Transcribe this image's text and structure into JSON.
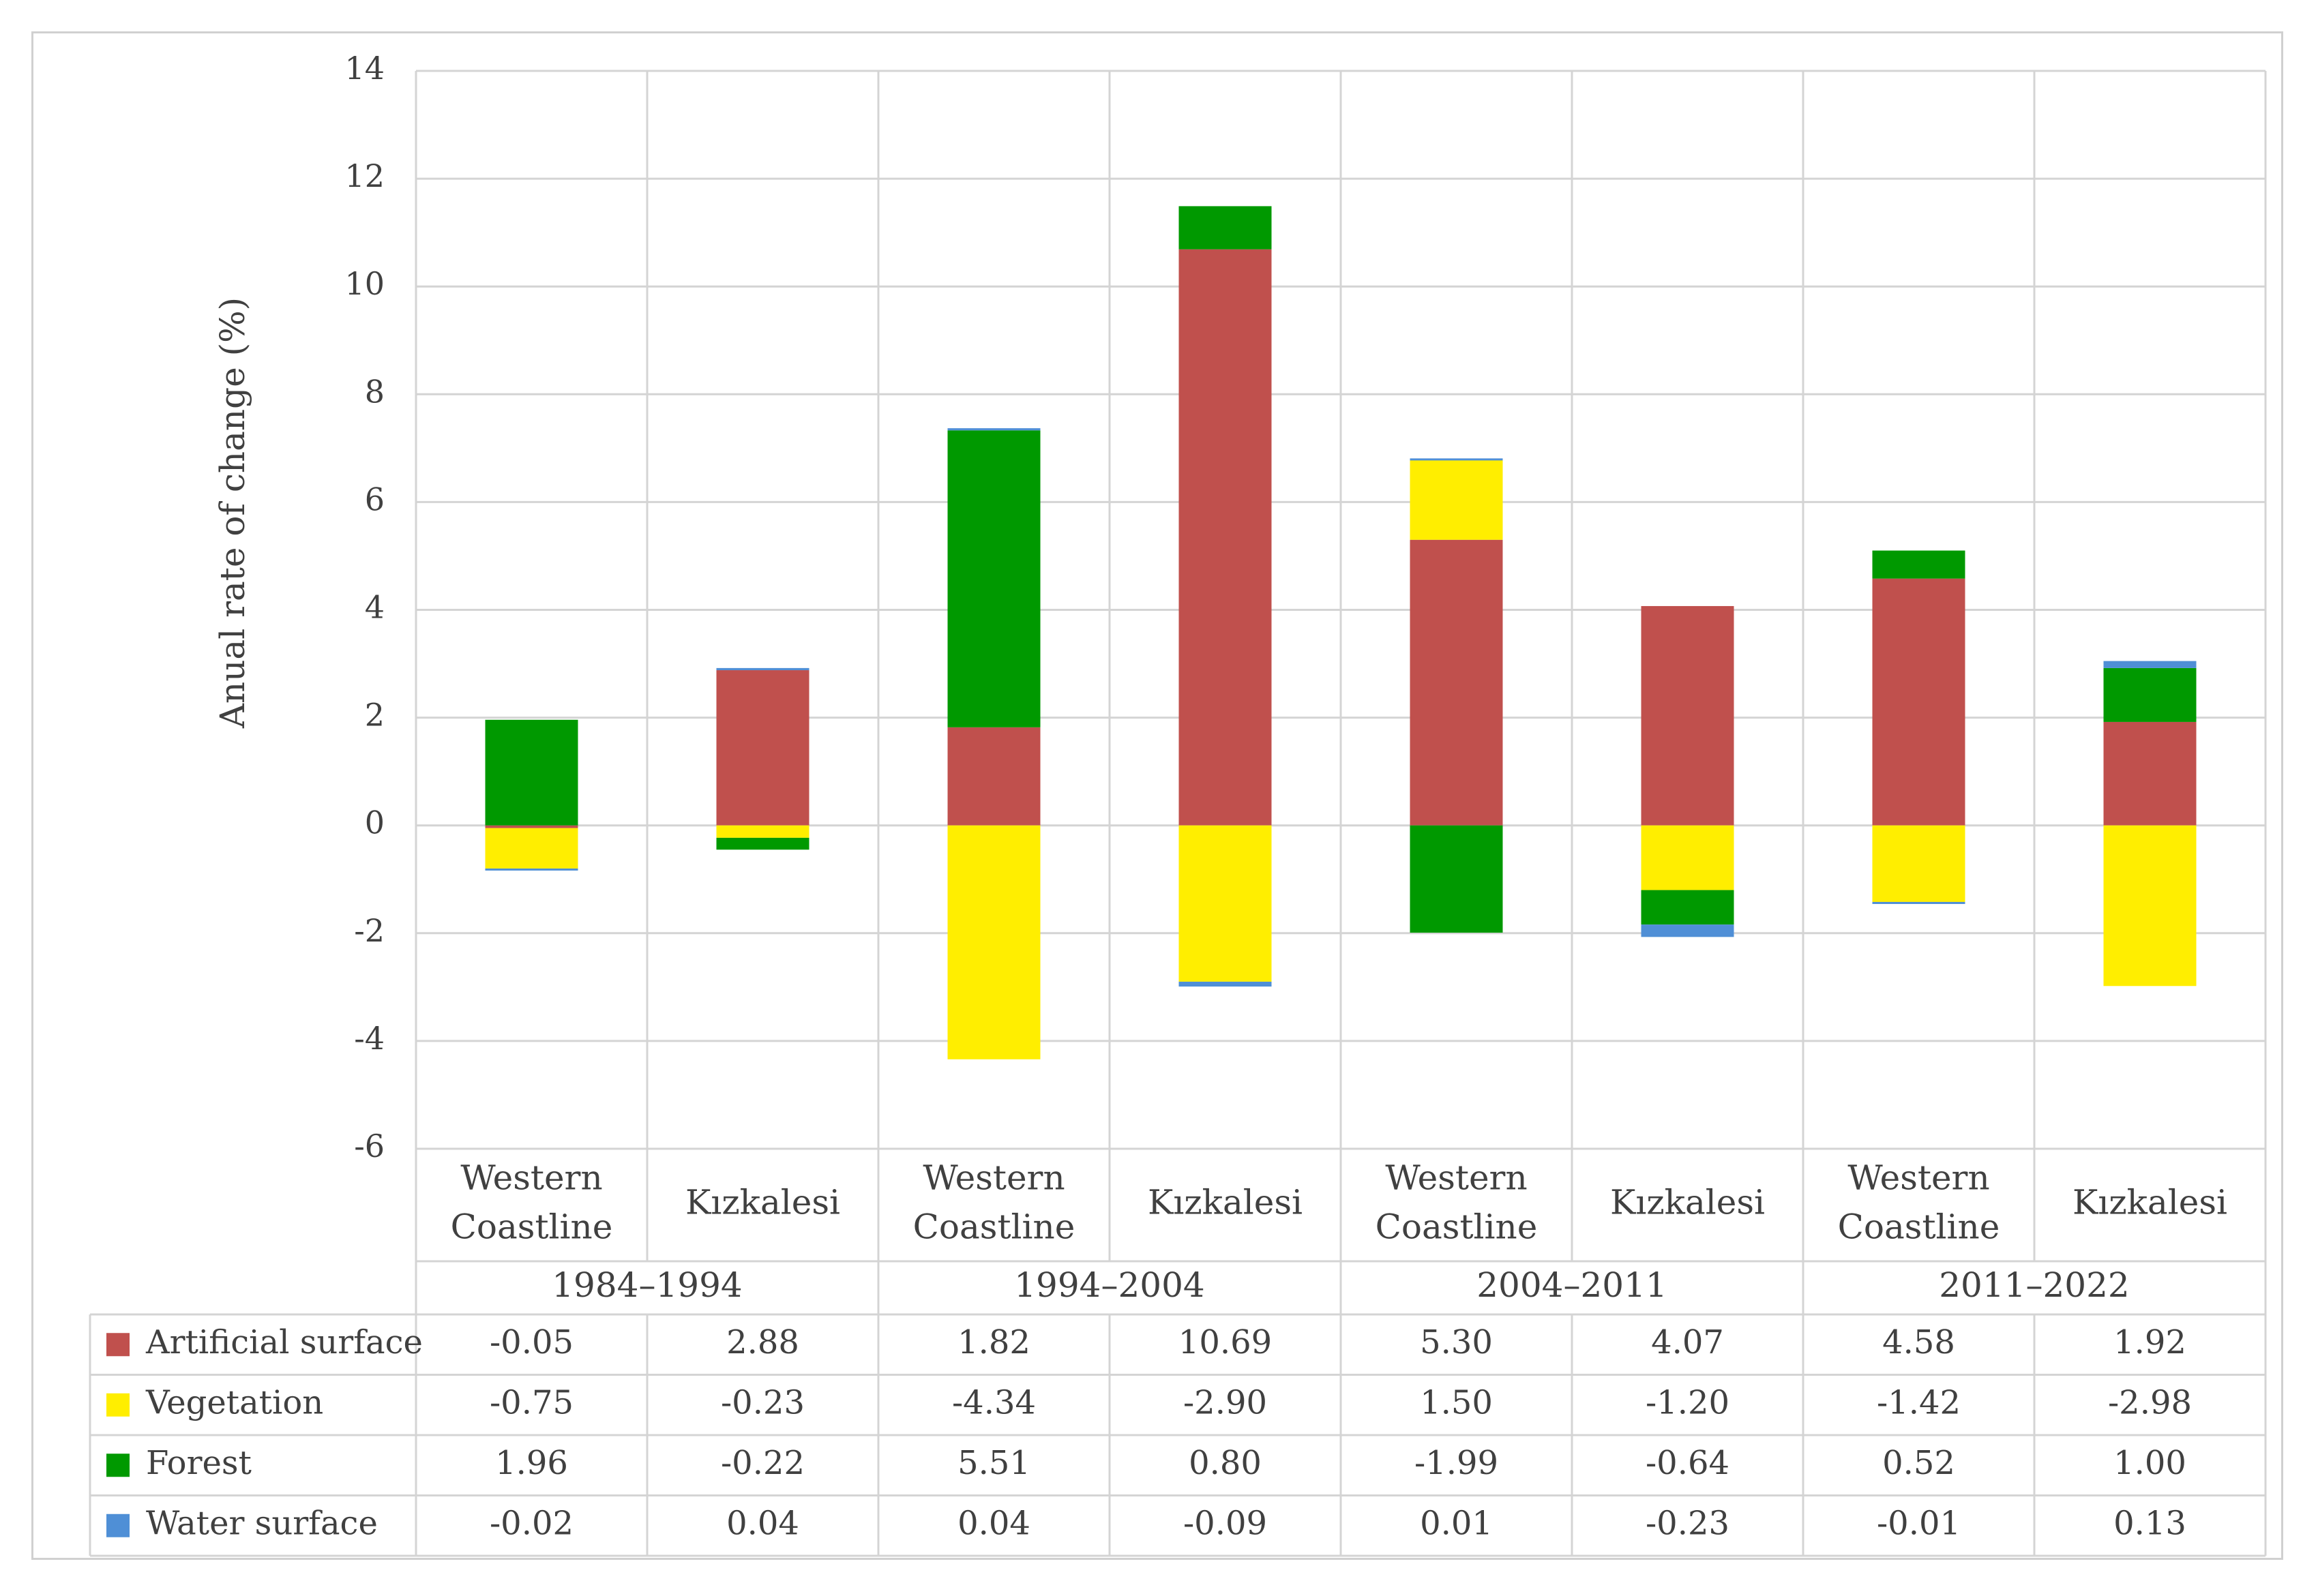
{
  "chart_data": {
    "type": "bar",
    "stacked": true,
    "title": "",
    "ylabel": "Anual rate of change (%)",
    "xlabel": "",
    "ylim": [
      -6,
      14
    ],
    "yticks": [
      "14",
      "12",
      "10",
      "8",
      "6",
      "4",
      "2",
      "0",
      "-2",
      "-4",
      "-6"
    ],
    "grid": true,
    "categories": [
      [
        "Western",
        "Coastline"
      ],
      [
        "Kızkalesi"
      ],
      [
        "Western",
        "Coastline"
      ],
      [
        "Kızkalesi"
      ],
      [
        "Western",
        "Coastline"
      ],
      [
        "Kızkalesi"
      ],
      [
        "Western",
        "Coastline"
      ],
      [
        "Kızkalesi"
      ]
    ],
    "groups": [
      "1984–1994",
      "1994–2004",
      "2004–2011",
      "2011–2022"
    ],
    "series": [
      {
        "name": "Artificial surface",
        "color": "#c0504d",
        "values": [
          -0.05,
          2.88,
          1.82,
          10.69,
          5.3,
          4.07,
          4.58,
          1.92
        ],
        "labels": [
          "-0.05",
          "2.88",
          "1.82",
          "10.69",
          "5.30",
          "4.07",
          "4.58",
          "1.92"
        ]
      },
      {
        "name": "Vegetation",
        "color": "#ffee00",
        "values": [
          -0.75,
          -0.23,
          -4.34,
          -2.9,
          1.5,
          -1.2,
          -1.42,
          -2.98
        ],
        "labels": [
          "-0.75",
          "-0.23",
          "-4.34",
          "-2.90",
          "1.50",
          "-1.20",
          "-1.42",
          "-2.98"
        ]
      },
      {
        "name": "Forest",
        "color": "#009900",
        "values": [
          1.96,
          -0.22,
          5.51,
          0.8,
          -1.99,
          -0.64,
          0.52,
          1.0
        ],
        "labels": [
          "1.96",
          "-0.22",
          "5.51",
          "0.80",
          "-1.99",
          "-0.64",
          "0.52",
          "1.00"
        ]
      },
      {
        "name": "Water surface",
        "color": "#4f8fd6",
        "values": [
          -0.02,
          0.04,
          0.04,
          -0.09,
          0.01,
          -0.23,
          -0.01,
          0.13
        ],
        "labels": [
          "-0.02",
          "0.04",
          "0.04",
          "-0.09",
          "0.01",
          "-0.23",
          "-0.01",
          "0.13"
        ]
      }
    ],
    "legend": "table-below"
  }
}
